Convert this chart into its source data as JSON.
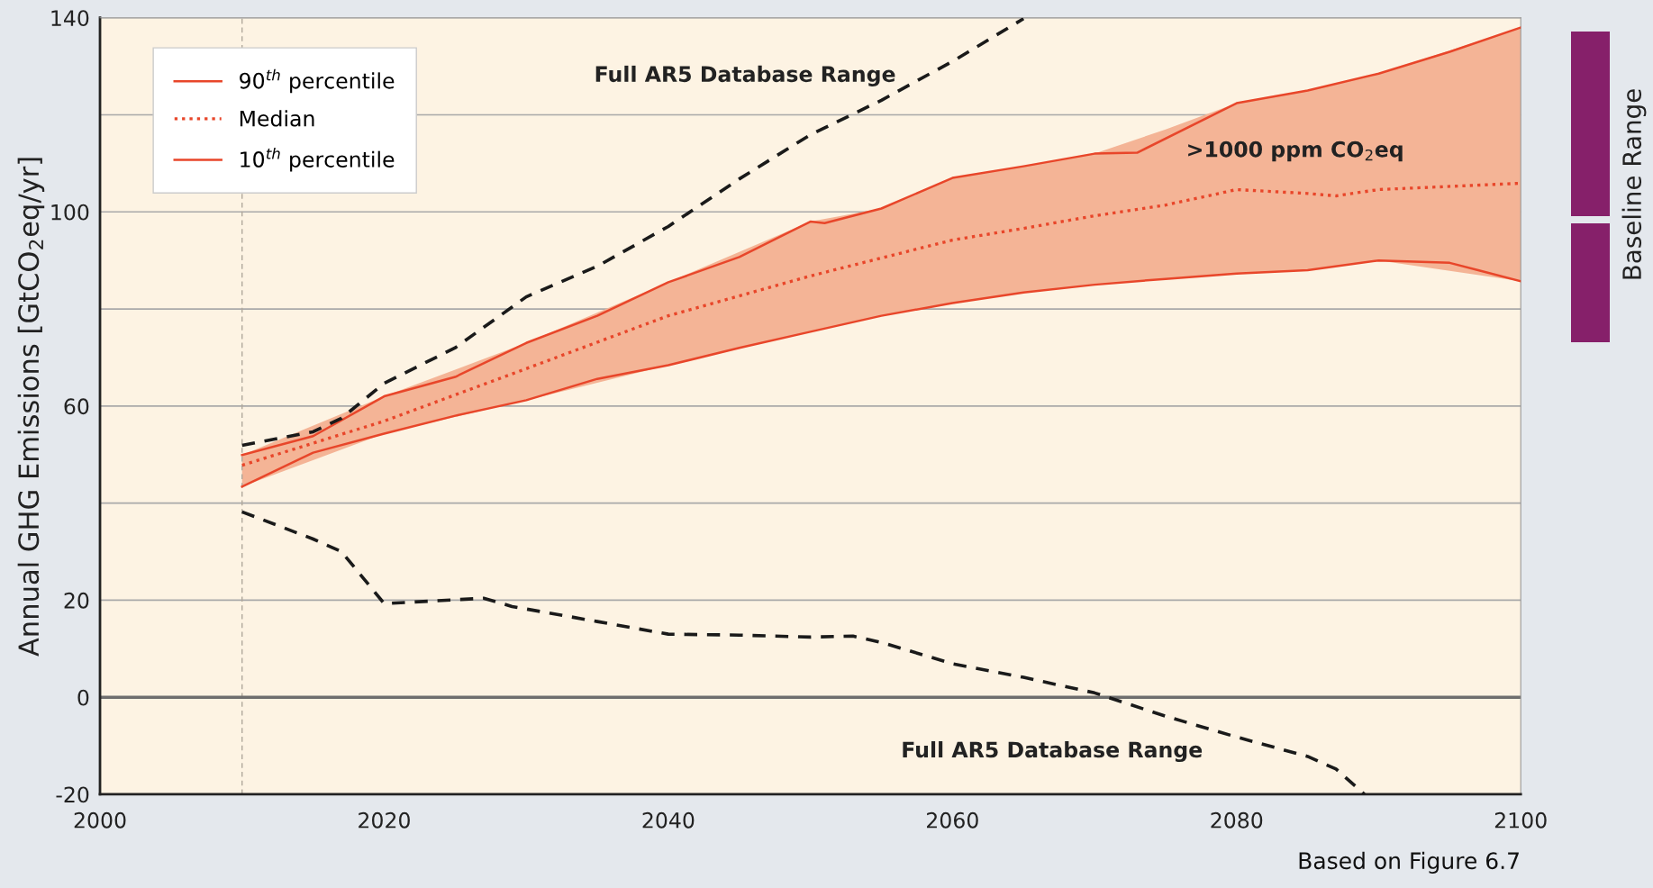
{
  "chart_data": {
    "type": "line",
    "ylabel": "Annual GHG Emissions [GtCO$_{2}$eq/yr]",
    "xlim": [
      2000,
      2100
    ],
    "xticks": [
      2000,
      2020,
      2040,
      2060,
      2080,
      2100
    ],
    "ylim": [
      -20,
      140
    ],
    "yticks": [
      -20,
      0,
      20,
      {
        "value": 40,
        "label": null
      },
      60,
      {
        "value": 80,
        "label": null
      },
      100,
      {
        "value": 120,
        "label": null
      },
      140
    ],
    "grid": "y",
    "legend": "top left",
    "series": [
      {
        "name": "90$^{th}$ percentile",
        "color": "#e8462a",
        "line_style": "solid",
        "x": [
          2010,
          2015,
          2020,
          2025,
          2030,
          2035,
          2040,
          2045,
          2050,
          2051,
          2055,
          2060,
          2065,
          2070,
          2073,
          2080,
          2085,
          2090,
          2095,
          2100
        ],
        "values": [
          49.9,
          53.8,
          62,
          66,
          73,
          78.6,
          85.5,
          90.7,
          98,
          97.7,
          100.7,
          107,
          109.4,
          112,
          112.2,
          122.4,
          125,
          128.5,
          133,
          138
        ]
      },
      {
        "name": "Median",
        "color": "#e8462a",
        "line_style": "dotted",
        "x": [
          2010,
          2020,
          2030,
          2040,
          2050,
          2055,
          2060,
          2065,
          2070,
          2075,
          2080,
          2085,
          2087,
          2090,
          2100
        ],
        "values": [
          47.8,
          56.9,
          67.7,
          78.6,
          86.8,
          90.5,
          94.2,
          96.6,
          99.2,
          101.4,
          104.6,
          103.8,
          103.3,
          104.6,
          105.9
        ],
        "lower": [
          43.4,
          54.3,
          61.2,
          68.4,
          75.3,
          78.6,
          81.2,
          83.4,
          85,
          86.2,
          87.3,
          88,
          88.8,
          90,
          85.7
        ],
        "upper": [
          49.9,
          62,
          73,
          85.5,
          98,
          100.7,
          107,
          109.4,
          112,
          117,
          122.4,
          125,
          126.4,
          128.5,
          138
        ]
      },
      {
        "name": "10$^{th}$ percentile",
        "color": "#e8462a",
        "line_style": "solid",
        "x": [
          2010,
          2015,
          2020,
          2025,
          2030,
          2035,
          2040,
          2045,
          2050,
          2055,
          2060,
          2065,
          2070,
          2075,
          2080,
          2085,
          2090,
          2095,
          2097,
          2100
        ],
        "values": [
          43.4,
          50.4,
          54.3,
          58,
          61.2,
          65.6,
          68.4,
          72,
          75.3,
          78.6,
          81.2,
          83.4,
          85,
          86.2,
          87.3,
          88,
          90,
          89.5,
          88,
          85.7
        ]
      },
      {
        "color": "#1a1a1a",
        "line_style": "dashed",
        "x": [
          2010,
          2015,
          2017,
          2020,
          2025,
          2030,
          2035,
          2040,
          2045,
          2050,
          2055,
          2060,
          2065
        ],
        "values": [
          51.9,
          54.7,
          57.5,
          64.7,
          72,
          82.5,
          88.8,
          97,
          106.8,
          115.9,
          123,
          131,
          139.8
        ]
      },
      {
        "color": "#1a1a1a",
        "line_style": "dashed",
        "x": [
          2010,
          2015,
          2017,
          2020,
          2027,
          2029,
          2035,
          2040,
          2045,
          2050,
          2053,
          2055,
          2060,
          2065,
          2070,
          2075,
          2080,
          2085,
          2087,
          2089
        ],
        "values": [
          38.2,
          32.6,
          30,
          19.3,
          20.4,
          18.7,
          15.6,
          13,
          12.8,
          12.4,
          12.6,
          11.3,
          6.9,
          4.1,
          0.9,
          -3.9,
          -8.2,
          -12.2,
          -14.8,
          -20
        ]
      }
    ],
    "ref_lines": [
      {
        "axis": "x",
        "value": 2010,
        "color": "#b0a89c",
        "line_style": "dashed"
      },
      {
        "axis": "y",
        "value": 0,
        "color": "#6e6e6e",
        "line_style": "solid"
      }
    ],
    "annotations": [
      "Full AR5 Database Range",
      "Full AR5 Database Range",
      ">1000 ppm CO$_{2}$eq",
      "Baseline Range",
      "Based on Figure 6.7"
    ]
  }
}
